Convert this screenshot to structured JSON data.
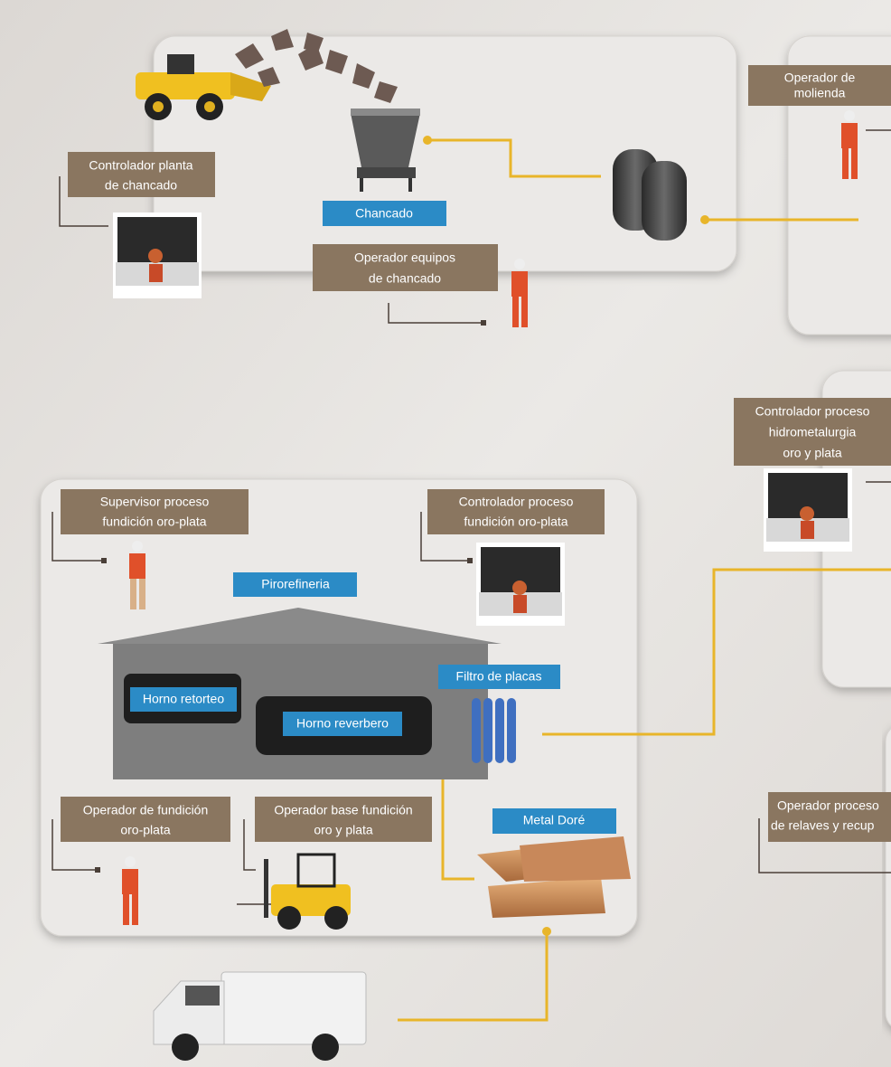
{
  "roles": [
    [
      "Controlador planta",
      "de chancado"
    ],
    [
      "Operador equipos",
      "de chancado"
    ],
    [
      "Operador de",
      "molienda"
    ],
    [
      "Controlador proceso",
      "hidrometalurgia",
      "oro y plata"
    ],
    [
      "Supervisor proceso",
      "fundición oro-plata"
    ],
    [
      "Controlador proceso",
      "fundición oro-plata"
    ],
    [
      "Operador de fundición",
      "oro-plata"
    ],
    [
      "Operador base fundición",
      "oro y plata"
    ],
    [
      "Operador proceso",
      "de relaves y recup"
    ]
  ],
  "stages": [
    "Chancado",
    "Pirorefineria",
    "Horno retorteo",
    "Horno reverbero",
    "Filtro de placas",
    "Metal Doré"
  ]
}
